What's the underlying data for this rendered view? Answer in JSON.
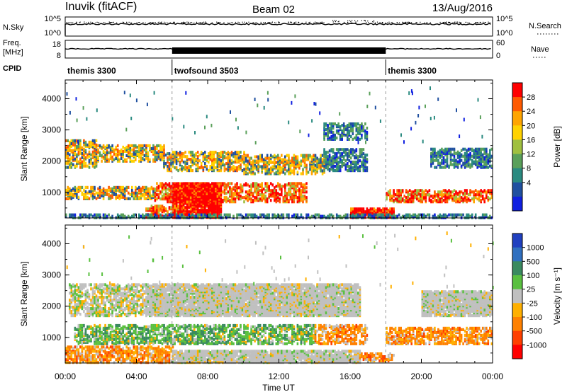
{
  "header": {
    "station": "Inuvik (fitACF)",
    "beam": "Beam 02",
    "date": "13/Aug/2016"
  },
  "sky_panel": {
    "left_label": "N.Sky",
    "left_ticks": [
      "10^5",
      "10^0"
    ],
    "right_label": "N.Search",
    "right_ticks": [
      "10^5",
      "10^0"
    ]
  },
  "freq_panel": {
    "left_label_1": "Freq.",
    "left_label_2": "[MHz]",
    "left_ticks": [
      "18",
      "8"
    ],
    "right_label": "Nave",
    "right_ticks": [
      "60",
      "0"
    ]
  },
  "cpid": {
    "label": "CPID",
    "segments": [
      {
        "name": "themis 3300",
        "start_hr": 0,
        "end_hr": 6
      },
      {
        "name": "twofsound 3503",
        "start_hr": 6,
        "end_hr": 18
      },
      {
        "name": "themis 3300",
        "start_hr": 18,
        "end_hr": 24
      }
    ]
  },
  "chart_data": [
    {
      "type": "heatmap",
      "title": "",
      "xlabel": "Time UT",
      "ylabel": "Slant Range [km]",
      "x_ticks": [
        "00:00",
        "04:00",
        "08:00",
        "12:00",
        "16:00",
        "20:00",
        "00:00"
      ],
      "y_ticks": [
        "1000",
        "2000",
        "3000",
        "4000"
      ],
      "xlim": [
        0,
        24
      ],
      "ylim": [
        180,
        4600
      ],
      "colorbar": {
        "label": "Power [dB]",
        "ticks": [
          "28",
          "24",
          "20",
          "16",
          "12",
          "8",
          "4"
        ],
        "colors": [
          "#ff0000",
          "#ff5a00",
          "#ffa500",
          "#ffd200",
          "#a0c040",
          "#5aa05a",
          "#2a8a80",
          "#2050a0",
          "#1020e0"
        ]
      },
      "bands": [
        {
          "t0": 0.0,
          "t1": 1.8,
          "r0": 1800,
          "r1": 2700,
          "level": "mid"
        },
        {
          "t0": 1.8,
          "t1": 5.5,
          "r0": 2000,
          "r1": 2500,
          "level": "mid"
        },
        {
          "t0": 5.5,
          "t1": 10.0,
          "r0": 1700,
          "r1": 2300,
          "level": "mid"
        },
        {
          "t0": 10.0,
          "t1": 14.5,
          "r0": 1600,
          "r1": 2200,
          "level": "mid"
        },
        {
          "t0": 14.5,
          "t1": 17.0,
          "r0": 1700,
          "r1": 2400,
          "level": "low"
        },
        {
          "t0": 20.5,
          "t1": 24.0,
          "r0": 1800,
          "r1": 2400,
          "level": "low"
        },
        {
          "t0": 0.0,
          "t1": 5.0,
          "r0": 800,
          "r1": 1200,
          "level": "mid"
        },
        {
          "t0": 5.0,
          "t1": 13.5,
          "r0": 700,
          "r1": 1300,
          "level": "high"
        },
        {
          "t0": 18.0,
          "t1": 24.0,
          "r0": 700,
          "r1": 1100,
          "level": "high"
        },
        {
          "t0": 6.0,
          "t1": 8.7,
          "r0": 200,
          "r1": 1300,
          "level": "max"
        },
        {
          "t0": 4.5,
          "t1": 6.5,
          "r0": 200,
          "r1": 600,
          "level": "high"
        },
        {
          "t0": 16.0,
          "t1": 18.5,
          "r0": 200,
          "r1": 500,
          "level": "max"
        },
        {
          "t0": 0.0,
          "t1": 24.0,
          "r0": 190,
          "r1": 300,
          "level": "low"
        },
        {
          "t0": 14.5,
          "t1": 17.0,
          "r0": 2700,
          "r1": 3200,
          "level": "low"
        }
      ]
    },
    {
      "type": "heatmap",
      "title": "",
      "xlabel": "Time UT",
      "ylabel": "Slant Range [km]",
      "x_ticks": [
        "00:00",
        "04:00",
        "08:00",
        "12:00",
        "16:00",
        "20:00",
        "00:00"
      ],
      "y_ticks": [
        "1000",
        "2000",
        "3000",
        "4000"
      ],
      "xlim": [
        0,
        24
      ],
      "ylim": [
        180,
        4600
      ],
      "colorbar": {
        "label": "Velocity [m s⁻¹]",
        "ticks": [
          "1000",
          "500",
          "100",
          "25",
          "-25",
          "-100",
          "-500",
          "-1000"
        ],
        "colors": [
          "#2040c0",
          "#3070c0",
          "#3a8a60",
          "#5ac040",
          "#c0c0c0",
          "#ffb000",
          "#ff8000",
          "#ff4000",
          "#ff0000"
        ]
      },
      "bands": [
        {
          "t0": 4.5,
          "t1": 16.5,
          "r0": 1700,
          "r1": 2700,
          "level": "grey"
        },
        {
          "t0": 0.2,
          "t1": 4.5,
          "r0": 1700,
          "r1": 2700,
          "level": "mixed"
        },
        {
          "t0": 20.0,
          "t1": 24.0,
          "r0": 1700,
          "r1": 2500,
          "level": "grey"
        },
        {
          "t0": 0.5,
          "t1": 14.0,
          "r0": 800,
          "r1": 1400,
          "level": "green"
        },
        {
          "t0": 14.0,
          "t1": 17.0,
          "r0": 800,
          "r1": 1400,
          "level": "orange"
        },
        {
          "t0": 18.0,
          "t1": 24.0,
          "r0": 800,
          "r1": 1300,
          "level": "orange"
        },
        {
          "t0": 0.0,
          "t1": 6.0,
          "r0": 200,
          "r1": 700,
          "level": "orange"
        },
        {
          "t0": 6.0,
          "t1": 16.5,
          "r0": 200,
          "r1": 600,
          "level": "grey"
        },
        {
          "t0": 16.5,
          "t1": 18.5,
          "r0": 250,
          "r1": 500,
          "level": "orange"
        }
      ]
    }
  ]
}
